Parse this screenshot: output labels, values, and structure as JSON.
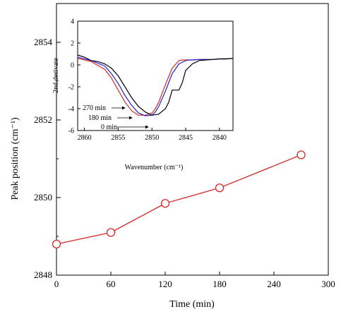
{
  "chart_data": [
    {
      "type": "line",
      "xlabel": "Time (min)",
      "ylabel": "Peak position (cm⁻¹)",
      "xlim": [
        0,
        300
      ],
      "ylim": [
        2848,
        2855
      ],
      "x_ticks": [
        "0",
        "60",
        "120",
        "180",
        "240",
        "300"
      ],
      "y_ticks": [
        "2848",
        "2850",
        "2852",
        "2854"
      ],
      "series": [
        {
          "x": [
            0,
            60,
            120,
            180,
            270
          ],
          "y": [
            2848.8,
            2849.1,
            2849.85,
            2850.25,
            2851.1
          ],
          "color": "#d62a2a",
          "marker": "open-circle"
        }
      ],
      "grid": false
    },
    {
      "type": "line",
      "xlabel": "Wavenumber (cm⁻¹)",
      "ylabel": "2nd derivate",
      "xlim": [
        2861,
        2838
      ],
      "ylim": [
        -6,
        4
      ],
      "x_ticks": [
        "2860",
        "2855",
        "2850",
        "2845",
        "2840"
      ],
      "y_ticks": [
        "-6",
        "-4",
        "-2",
        "0",
        "2",
        "4"
      ],
      "annotations": [
        "270 min",
        "180 min",
        "0 min"
      ],
      "series": [
        {
          "label_ref": "270 min",
          "color": "#d62a2a",
          "x": [
            2861,
            2859,
            2857,
            2856,
            2855,
            2854,
            2853,
            2852,
            2851,
            2850,
            2849.5,
            2849,
            2848,
            2847,
            2846,
            2845.5,
            2845,
            2844,
            2843,
            2842,
            2841,
            2840,
            2839,
            2838
          ],
          "y": [
            0.6,
            0.3,
            -0.4,
            -1.2,
            -2.3,
            -3.4,
            -4.2,
            -4.6,
            -4.6,
            -4.4,
            -4.0,
            -3.4,
            -1.8,
            -0.3,
            0.4,
            0.45,
            0.45,
            0.45,
            0.5,
            0.5,
            0.5,
            0.55,
            0.55,
            0.6
          ]
        },
        {
          "label_ref": "180 min",
          "color": "#2020d8",
          "x": [
            2861,
            2859,
            2857,
            2856,
            2855,
            2854,
            2853,
            2852,
            2851,
            2850,
            2849.5,
            2849,
            2848,
            2847,
            2846,
            2845,
            2844.5,
            2844,
            2843,
            2842,
            2841,
            2840,
            2839,
            2838
          ],
          "y": [
            0.7,
            0.4,
            -0.1,
            -0.8,
            -1.7,
            -2.8,
            -3.7,
            -4.4,
            -4.65,
            -4.6,
            -4.3,
            -3.8,
            -2.4,
            -0.8,
            0.1,
            0.4,
            0.45,
            0.45,
            0.5,
            0.5,
            0.5,
            0.55,
            0.55,
            0.6
          ]
        },
        {
          "label_ref": "0 min",
          "color": "#000000",
          "x": [
            2861,
            2860,
            2859,
            2858,
            2857,
            2856,
            2855,
            2854,
            2853,
            2852,
            2851,
            2850,
            2849,
            2848,
            2847.5,
            2847,
            2846,
            2845.5,
            2845,
            2844,
            2843,
            2842,
            2841,
            2840,
            2839,
            2838
          ],
          "y": [
            0.9,
            0.7,
            0.4,
            0.3,
            0.1,
            -0.3,
            -1.0,
            -2.0,
            -3.0,
            -3.8,
            -4.3,
            -4.6,
            -4.5,
            -4.0,
            -3.4,
            -2.3,
            -2.3,
            -1.6,
            -0.5,
            0.1,
            0.4,
            0.45,
            0.5,
            0.55,
            0.55,
            0.6
          ]
        }
      ],
      "grid": false
    }
  ]
}
